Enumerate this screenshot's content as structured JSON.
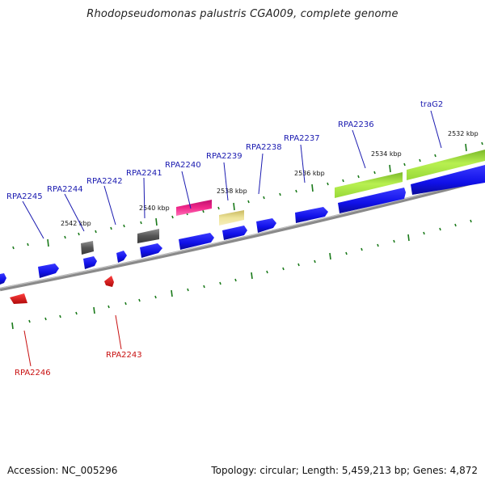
{
  "title": "Rhodopseudomonas palustris CGA009, complete genome",
  "footer": {
    "accession": "Accession: NC_005296",
    "summary": "Topology: circular; Length: 5,459,213 bp; Genes: 4,872"
  },
  "colors": {
    "forward_cds": "#1010e8",
    "reverse_cds": "#ee1010",
    "label_forward": "#1a1ab0",
    "label_reverse": "#c81010",
    "tick": "#1a7a1a",
    "backbone": "#808080"
  },
  "scale_labels": [
    "2532 kbp",
    "2534 kbp",
    "2536 kbp",
    "2538 kbp",
    "2540 kbp",
    "2542 kbp"
  ],
  "gene_labels": [
    {
      "name": "traG2",
      "strand": "forward"
    },
    {
      "name": "RPA2236",
      "strand": "forward"
    },
    {
      "name": "RPA2237",
      "strand": "forward"
    },
    {
      "name": "RPA2238",
      "strand": "forward"
    },
    {
      "name": "RPA2239",
      "strand": "forward"
    },
    {
      "name": "RPA2240",
      "strand": "forward"
    },
    {
      "name": "RPA2241",
      "strand": "forward"
    },
    {
      "name": "RPA2242",
      "strand": "forward"
    },
    {
      "name": "RPA2244",
      "strand": "forward"
    },
    {
      "name": "RPA2245",
      "strand": "forward"
    },
    {
      "name": "RPA2243",
      "strand": "reverse"
    },
    {
      "name": "RPA2246",
      "strand": "reverse"
    }
  ]
}
